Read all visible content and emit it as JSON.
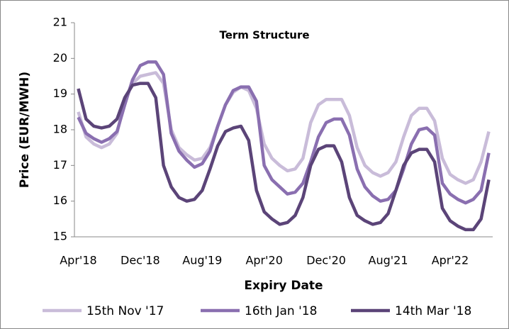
{
  "chart_data": {
    "type": "line",
    "title": "Term Structure",
    "x_label": "Expiry Date",
    "y_label": "Price (EUR/MWH)",
    "categories": [
      "Apr'18",
      null,
      null,
      null,
      null,
      null,
      null,
      null,
      "Dec'18",
      null,
      null,
      null,
      null,
      null,
      null,
      null,
      "Aug'19",
      null,
      null,
      null,
      null,
      null,
      null,
      null,
      "Apr'20",
      null,
      null,
      null,
      null,
      null,
      null,
      null,
      "Dec'20",
      null,
      null,
      null,
      null,
      null,
      null,
      null,
      "Aug'21",
      null,
      null,
      null,
      null,
      null,
      null,
      null,
      "Apr'22",
      null,
      null,
      null,
      null,
      null
    ],
    "series": [
      {
        "name": "15th Nov '17",
        "color": "#c9bcd9",
        "values": [
          18.5,
          17.8,
          17.6,
          17.5,
          17.6,
          17.9,
          18.8,
          19.3,
          19.5,
          19.55,
          19.6,
          19.3,
          18.0,
          17.5,
          17.3,
          17.15,
          17.2,
          17.5,
          18.1,
          18.7,
          19.05,
          19.2,
          19.1,
          18.6,
          17.6,
          17.2,
          17.0,
          16.85,
          16.9,
          17.2,
          18.2,
          18.7,
          18.85,
          18.85,
          18.85,
          18.4,
          17.5,
          17.0,
          16.8,
          16.7,
          16.8,
          17.1,
          17.8,
          18.4,
          18.6,
          18.6,
          18.25,
          17.2,
          16.75,
          16.6,
          16.5,
          16.6,
          17.1,
          17.95
        ]
      },
      {
        "name": "16th Jan '18",
        "color": "#8a6fb0",
        "values": [
          18.35,
          17.9,
          17.75,
          17.65,
          17.75,
          17.95,
          18.7,
          19.4,
          19.8,
          19.9,
          19.9,
          19.55,
          17.9,
          17.4,
          17.15,
          16.95,
          17.05,
          17.4,
          18.1,
          18.7,
          19.1,
          19.2,
          19.2,
          18.8,
          17.0,
          16.6,
          16.4,
          16.2,
          16.25,
          16.5,
          17.1,
          17.8,
          18.2,
          18.3,
          18.3,
          17.85,
          16.9,
          16.4,
          16.15,
          16.0,
          16.05,
          16.3,
          16.9,
          17.6,
          18.0,
          18.05,
          17.85,
          16.5,
          16.2,
          16.05,
          15.95,
          16.05,
          16.3,
          17.35
        ]
      },
      {
        "name": "14th Mar '18",
        "color": "#5b4478",
        "values": [
          19.15,
          18.3,
          18.1,
          18.05,
          18.1,
          18.3,
          18.9,
          19.25,
          19.3,
          19.3,
          18.9,
          17.0,
          16.4,
          16.1,
          16.0,
          16.05,
          16.3,
          16.9,
          17.55,
          17.95,
          18.05,
          18.1,
          17.7,
          16.3,
          15.7,
          15.5,
          15.35,
          15.4,
          15.6,
          16.1,
          17.0,
          17.45,
          17.55,
          17.55,
          17.1,
          16.1,
          15.6,
          15.45,
          15.35,
          15.4,
          15.65,
          16.3,
          17.0,
          17.35,
          17.45,
          17.45,
          17.1,
          15.8,
          15.45,
          15.3,
          15.2,
          15.2,
          15.5,
          16.6
        ]
      }
    ],
    "ylim": [
      15,
      21
    ],
    "yticks": [
      15,
      16,
      17,
      18,
      19,
      20,
      21
    ],
    "grid": false,
    "legend": "bottom"
  }
}
